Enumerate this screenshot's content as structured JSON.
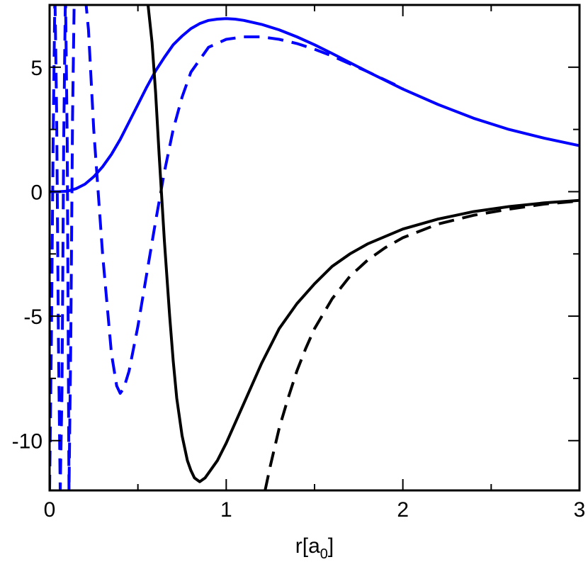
{
  "chart_data": {
    "type": "line",
    "xlabel": {
      "main": "r[a",
      "sub": "0",
      "close": "]"
    },
    "ylabel": "",
    "title": "",
    "xlim": [
      0,
      3
    ],
    "ylim": [
      -12,
      7.5
    ],
    "x_ticks": [
      0,
      1,
      2,
      3
    ],
    "x_tick_labels": [
      "0",
      "1",
      "2",
      "3"
    ],
    "y_ticks": [
      -10,
      -5,
      0,
      5
    ],
    "y_tick_labels": [
      "-10",
      "-5",
      "0",
      "5"
    ],
    "x_minor_step": 0.5,
    "y_minor_step": 2.5,
    "grid": false,
    "legend": "none",
    "series": [
      {
        "color": "#0000ff",
        "dash": "solid",
        "x": [
          0,
          0.05,
          0.1,
          0.15,
          0.2,
          0.25,
          0.3,
          0.35,
          0.4,
          0.45,
          0.5,
          0.55,
          0.6,
          0.65,
          0.7,
          0.75,
          0.8,
          0.85,
          0.9,
          0.95,
          1.0,
          1.05,
          1.1,
          1.2,
          1.3,
          1.4,
          1.5,
          1.6,
          1.8,
          2.0,
          2.2,
          2.4,
          2.6,
          2.8,
          3.0
        ],
        "y": [
          0.0,
          0.0,
          0.02,
          0.12,
          0.3,
          0.6,
          1.0,
          1.5,
          2.1,
          2.8,
          3.5,
          4.2,
          4.85,
          5.4,
          5.9,
          6.25,
          6.55,
          6.75,
          6.88,
          6.93,
          6.95,
          6.93,
          6.88,
          6.72,
          6.5,
          6.22,
          5.9,
          5.55,
          4.82,
          4.12,
          3.5,
          2.95,
          2.5,
          2.15,
          1.85
        ]
      },
      {
        "color": "#0000ff",
        "dash": "dashed",
        "x": [
          0,
          0.01,
          0.02,
          0.03,
          0.04,
          0.05,
          0.06,
          0.07,
          0.08,
          0.09,
          0.1,
          0.11,
          0.12,
          0.13,
          0.14,
          0.16,
          0.18,
          0.2,
          0.22,
          0.25,
          0.3,
          0.35,
          0.38,
          0.4,
          0.42,
          0.45,
          0.5,
          0.55,
          0.6,
          0.65,
          0.7,
          0.75,
          0.8,
          0.9,
          1.0,
          1.1,
          1.2,
          1.3,
          1.4,
          1.5,
          1.6,
          1.8,
          2.0
        ],
        "y": [
          -12,
          -6,
          2,
          8,
          3,
          -6,
          -12,
          -8,
          2,
          8,
          2,
          -12,
          -6,
          3,
          8,
          8,
          8,
          8,
          6.5,
          2.5,
          -2.5,
          -6.5,
          -7.8,
          -8.1,
          -7.9,
          -7.2,
          -5.4,
          -3.3,
          -1.2,
          0.8,
          2.5,
          3.8,
          4.8,
          5.8,
          6.12,
          6.22,
          6.22,
          6.12,
          5.95,
          5.72,
          5.45,
          4.82,
          4.15
        ]
      },
      {
        "color": "#000000",
        "dash": "solid",
        "x": [
          0.55,
          0.58,
          0.6,
          0.62,
          0.65,
          0.68,
          0.7,
          0.72,
          0.75,
          0.78,
          0.8,
          0.82,
          0.85,
          0.88,
          0.9,
          0.95,
          1.0,
          1.05,
          1.1,
          1.2,
          1.3,
          1.4,
          1.5,
          1.6,
          1.7,
          1.8,
          1.9,
          2.0,
          2.2,
          2.4,
          2.6,
          2.8,
          3.0
        ],
        "y": [
          8,
          6,
          4,
          1.5,
          -2,
          -5,
          -6.8,
          -8.3,
          -9.8,
          -10.8,
          -11.2,
          -11.5,
          -11.65,
          -11.5,
          -11.3,
          -10.8,
          -10.1,
          -9.3,
          -8.5,
          -6.9,
          -5.5,
          -4.5,
          -3.7,
          -3.0,
          -2.5,
          -2.1,
          -1.8,
          -1.5,
          -1.1,
          -0.8,
          -0.6,
          -0.45,
          -0.35
        ]
      },
      {
        "color": "#000000",
        "dash": "dashed",
        "x": [
          1.22,
          1.25,
          1.3,
          1.35,
          1.4,
          1.45,
          1.5,
          1.6,
          1.7,
          1.8,
          1.9,
          2.0,
          2.2,
          2.4,
          2.6,
          2.8,
          3.0
        ],
        "y": [
          -12,
          -11.0,
          -9.5,
          -8.3,
          -7.2,
          -6.3,
          -5.5,
          -4.3,
          -3.4,
          -2.75,
          -2.25,
          -1.85,
          -1.3,
          -0.95,
          -0.7,
          -0.5,
          -0.37
        ]
      }
    ]
  }
}
